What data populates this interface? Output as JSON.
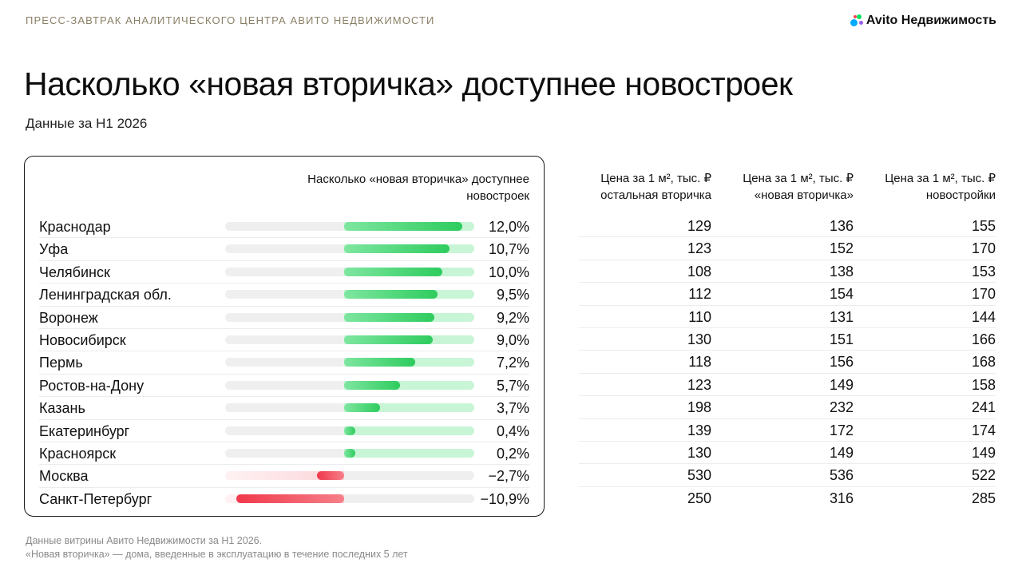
{
  "header": {
    "kicker": "ПРЕСС-ЗАВТРАК АНАЛИТИЧЕСКОГО ЦЕНТРА АВИТО НЕДВИЖИМОСТИ",
    "brand": "Avito Недвижимость",
    "brand_icon": "avito-dots-logo"
  },
  "title": "Насколько «новая вторичка» доступнее новостроек",
  "subtitle": "Данные за Н1 2026",
  "colors": {
    "positive": "#2ecc5e",
    "positive_light": "#c8f5d6",
    "negative": "#f0394b",
    "negative_light": "#fbd5d9",
    "track": "#efefef"
  },
  "chart_data": {
    "type": "bar",
    "title": "Насколько «новая вторичка» доступнее новостроек",
    "categories": [
      "Краснодар",
      "Уфа",
      "Челябинск",
      "Ленинградская обл.",
      "Воронеж",
      "Новосибирск",
      "Пермь",
      "Ростов-на-Дону",
      "Казань",
      "Екатеринбург",
      "Красноярск",
      "Москва",
      "Санкт-Петербург"
    ],
    "values": [
      12.0,
      10.7,
      10.0,
      9.5,
      9.2,
      9.0,
      7.2,
      5.7,
      3.7,
      0.4,
      0.2,
      -2.7,
      -10.9
    ],
    "value_labels": [
      "12,0%",
      "10,7%",
      "10,0%",
      "9,5%",
      "9,2%",
      "9,0%",
      "7,2%",
      "5,7%",
      "3,7%",
      "0,4%",
      "0,2%",
      "−2,7%",
      "−10,9%"
    ],
    "unit": "%",
    "xlim": [
      -12.0,
      13.2
    ]
  },
  "table": {
    "headers": [
      "Цена за 1 м², тыс. ₽ остальная вторичка",
      "Цена за 1 м², тыс. ₽ «новая вторичка»",
      "Цена за 1 м², тыс. ₽ новостройки"
    ],
    "rows": [
      [
        129,
        136,
        155
      ],
      [
        123,
        152,
        170
      ],
      [
        108,
        138,
        153
      ],
      [
        112,
        154,
        170
      ],
      [
        110,
        131,
        144
      ],
      [
        130,
        151,
        166
      ],
      [
        118,
        156,
        168
      ],
      [
        123,
        149,
        158
      ],
      [
        198,
        232,
        241
      ],
      [
        139,
        172,
        174
      ],
      [
        130,
        149,
        149
      ],
      [
        530,
        536,
        522
      ],
      [
        250,
        316,
        285
      ]
    ]
  },
  "footnotes": [
    "Данные витрины Авито Недвижимости за Н1 2026.",
    "«Новая вторичка» — дома, введенные в эксплуатацию в течение последних 5 лет"
  ]
}
